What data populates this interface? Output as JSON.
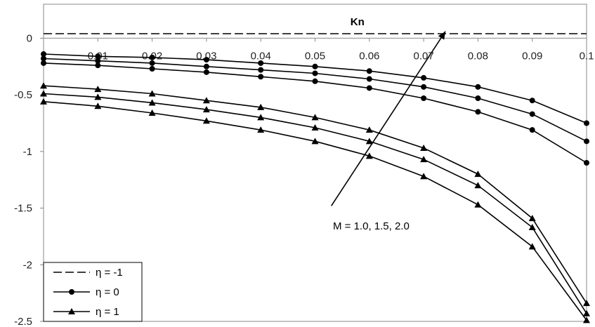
{
  "chart_data": {
    "type": "line",
    "xlabel": "Kn",
    "x": [
      0,
      0.01,
      0.02,
      0.03,
      0.04,
      0.05,
      0.06,
      0.07,
      0.08,
      0.09,
      0.1
    ],
    "x_tick_labels": [
      "0.01",
      "0.02",
      "0.03",
      "0.04",
      "0.05",
      "0.06",
      "0.07",
      "0.08",
      "0.09",
      "0.1"
    ],
    "y_tick_labels": [
      "0",
      "-0.5",
      "-1",
      "-1.5",
      "-2",
      "-2.5"
    ],
    "ylim": [
      -2.5,
      0.3
    ],
    "xlim": [
      0,
      0.1
    ],
    "grid": false,
    "legend_position": "bottom-left",
    "series": [
      {
        "name": "η = -1",
        "group": "eta_-1",
        "marker": "none",
        "dash": true,
        "values": [
          0.04,
          0.04,
          0.04,
          0.04,
          0.04,
          0.04,
          0.04,
          0.04,
          0.04,
          0.04,
          0.04
        ]
      },
      {
        "name": "η = 0",
        "group": "eta_0",
        "marker": "circle",
        "values": [
          -0.14,
          -0.16,
          -0.17,
          -0.19,
          -0.22,
          -0.25,
          -0.29,
          -0.35,
          -0.43,
          -0.55,
          -0.75
        ]
      },
      {
        "name": "",
        "group": "eta_0",
        "marker": "circle",
        "values": [
          -0.18,
          -0.2,
          -0.22,
          -0.25,
          -0.28,
          -0.31,
          -0.36,
          -0.43,
          -0.53,
          -0.67,
          -0.91
        ]
      },
      {
        "name": "",
        "group": "eta_0",
        "marker": "circle",
        "values": [
          -0.22,
          -0.24,
          -0.27,
          -0.3,
          -0.34,
          -0.38,
          -0.44,
          -0.53,
          -0.65,
          -0.81,
          -1.1
        ]
      },
      {
        "name": "η = 1",
        "group": "eta_1",
        "marker": "triangle",
        "values": [
          -0.42,
          -0.45,
          -0.49,
          -0.55,
          -0.61,
          -0.7,
          -0.81,
          -0.97,
          -1.2,
          -1.59,
          -2.34
        ]
      },
      {
        "name": "",
        "group": "eta_1",
        "marker": "triangle",
        "values": [
          -0.49,
          -0.52,
          -0.57,
          -0.63,
          -0.7,
          -0.79,
          -0.91,
          -1.07,
          -1.3,
          -1.67,
          -2.43
        ]
      },
      {
        "name": "",
        "group": "eta_1",
        "marker": "triangle",
        "values": [
          -0.56,
          -0.6,
          -0.66,
          -0.73,
          -0.81,
          -0.91,
          -1.04,
          -1.22,
          -1.47,
          -1.84,
          -2.49
        ]
      }
    ],
    "annotations": [
      {
        "text": "M = 1.0, 1.5, 2.0",
        "arrow_from": [
          0.053,
          -1.48
        ],
        "arrow_to": [
          0.074,
          0.06
        ]
      }
    ],
    "legend": [
      {
        "label": "η = -1",
        "marker": "none",
        "dash": true
      },
      {
        "label": "η = 0",
        "marker": "circle",
        "dash": false
      },
      {
        "label": "η = 1",
        "marker": "triangle",
        "dash": false
      }
    ]
  }
}
